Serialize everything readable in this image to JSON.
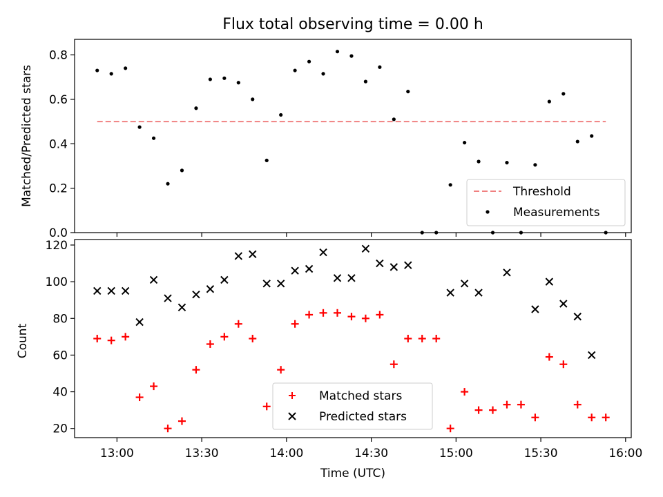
{
  "chart_data": [
    {
      "type": "scatter",
      "title": "Flux total observing time = 0.00 h",
      "xlabel": "",
      "ylabel": "Matched/Predicted stars",
      "ylim": [
        0,
        0.87
      ],
      "yticks": [
        "0.0",
        "0.2",
        "0.4",
        "0.6",
        "0.8"
      ],
      "ytick_values": [
        0,
        0.2,
        0.4,
        0.6,
        0.8
      ],
      "legend_position": "lower-right",
      "threshold": {
        "name": "Threshold",
        "value": 0.5,
        "color": "#f08080",
        "x_start": "12:53",
        "x_end": "15:53"
      },
      "series": [
        {
          "name": "Measurements",
          "color": "#000000",
          "x": [
            "12:53",
            "12:58",
            "13:03",
            "13:08",
            "13:13",
            "13:18",
            "13:23",
            "13:28",
            "13:33",
            "13:38",
            "13:43",
            "13:48",
            "13:53",
            "13:58",
            "14:03",
            "14:08",
            "14:13",
            "14:18",
            "14:23",
            "14:28",
            "14:33",
            "14:38",
            "14:43",
            "14:48",
            "14:53",
            "14:58",
            "15:03",
            "15:08",
            "15:13",
            "15:18",
            "15:23",
            "15:28",
            "15:33",
            "15:38",
            "15:43",
            "15:48",
            "15:53"
          ],
          "y": [
            0.73,
            0.715,
            0.74,
            0.475,
            0.425,
            0.22,
            0.28,
            0.56,
            0.69,
            0.695,
            0.675,
            0.6,
            0.325,
            0.53,
            0.73,
            0.77,
            0.715,
            0.815,
            0.795,
            0.68,
            0.745,
            0.51,
            0.635,
            0.0,
            0.0,
            0.215,
            0.405,
            0.32,
            0.0,
            0.315,
            0.0,
            0.305,
            0.59,
            0.625,
            0.41,
            0.435,
            0.0
          ]
        }
      ]
    },
    {
      "type": "scatter",
      "title": "",
      "xlabel": "Time (UTC)",
      "ylabel": "Count",
      "xlim": [
        "12:45",
        "16:02"
      ],
      "ylim": [
        15,
        123
      ],
      "xticks": [
        "13:00",
        "13:30",
        "14:00",
        "14:30",
        "15:00",
        "15:30",
        "16:00"
      ],
      "yticks": [
        "20",
        "40",
        "60",
        "80",
        "100",
        "120"
      ],
      "ytick_values": [
        20,
        40,
        60,
        80,
        100,
        120
      ],
      "legend_position": "lower-center",
      "series": [
        {
          "name": "Matched stars",
          "color": "#ff0000",
          "marker": "plus",
          "x": [
            "12:53",
            "12:58",
            "13:03",
            "13:08",
            "13:13",
            "13:18",
            "13:23",
            "13:28",
            "13:33",
            "13:38",
            "13:43",
            "13:48",
            "13:53",
            "13:58",
            "14:03",
            "14:08",
            "14:13",
            "14:18",
            "14:23",
            "14:28",
            "14:33",
            "14:38",
            "14:43",
            "14:48",
            "14:53",
            "14:58",
            "15:03",
            "15:08",
            "15:13",
            "15:18",
            "15:23",
            "15:28",
            "15:33",
            "15:38",
            "15:43",
            "15:48",
            "15:53"
          ],
          "y": [
            69,
            68,
            70,
            37,
            43,
            20,
            24,
            52,
            66,
            70,
            77,
            69,
            32,
            52,
            77,
            82,
            83,
            83,
            81,
            80,
            82,
            55,
            69,
            69,
            69,
            20,
            40,
            30,
            30,
            33,
            33,
            26,
            59,
            55,
            33,
            26,
            26
          ]
        },
        {
          "name": "Predicted stars",
          "color": "#000000",
          "marker": "x",
          "x": [
            "12:53",
            "12:58",
            "13:03",
            "13:08",
            "13:13",
            "13:18",
            "13:23",
            "13:28",
            "13:33",
            "13:38",
            "13:43",
            "13:48",
            "13:53",
            "13:58",
            "14:03",
            "14:08",
            "14:13",
            "14:18",
            "14:23",
            "14:28",
            "14:33",
            "14:38",
            "14:43",
            "14:58",
            "15:03",
            "15:08",
            "15:18",
            "15:28",
            "15:33",
            "15:38",
            "15:43",
            "15:48"
          ],
          "y": [
            95,
            95,
            95,
            78,
            101,
            91,
            86,
            93,
            96,
            101,
            114,
            115,
            99,
            99,
            106,
            107,
            116,
            102,
            102,
            118,
            110,
            108,
            109,
            94,
            99,
            94,
            105,
            85,
            100,
            88,
            81,
            60
          ]
        }
      ]
    }
  ]
}
